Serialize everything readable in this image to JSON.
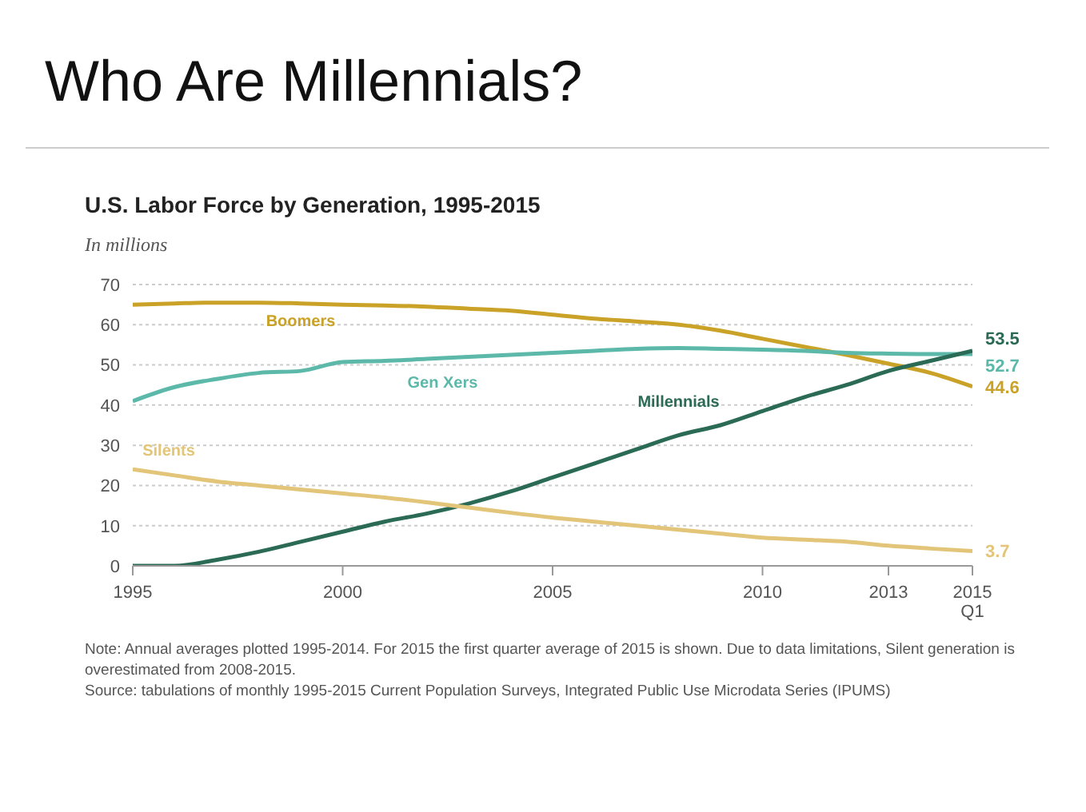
{
  "chart_data": {
    "type": "line",
    "title": "Who Are Millennials?",
    "subtitle": "U.S. Labor Force by Generation, 1995-2015",
    "ylabel": "In millions",
    "x": [
      1995,
      1996,
      1997,
      1998,
      1999,
      2000,
      2001,
      2002,
      2003,
      2004,
      2005,
      2006,
      2007,
      2008,
      2009,
      2010,
      2011,
      2012,
      2013,
      2014,
      2015
    ],
    "series": [
      {
        "name": "Boomers",
        "color": "#c9a227",
        "values": [
          65,
          65.3,
          65.5,
          65.5,
          65.3,
          65,
          64.8,
          64.5,
          64,
          63.5,
          62.5,
          61.5,
          60.8,
          60,
          58.5,
          56.5,
          54.5,
          52.5,
          50.3,
          48,
          44.6
        ],
        "value_labels": [
          null,
          null,
          null,
          null,
          null,
          null,
          null,
          null,
          null,
          null,
          null,
          null,
          null,
          null,
          null,
          null,
          null,
          null,
          null,
          null,
          "44.6"
        ]
      },
      {
        "name": "Gen Xers",
        "color": "#5cb8a8",
        "values": [
          41,
          44.5,
          46.5,
          48,
          48.5,
          50.7,
          51,
          51.5,
          52,
          52.5,
          53,
          53.5,
          54,
          54.2,
          54,
          53.8,
          53.5,
          53,
          52.8,
          52.7,
          52.7
        ],
        "value_labels": [
          null,
          null,
          null,
          null,
          null,
          null,
          null,
          null,
          null,
          null,
          null,
          null,
          null,
          null,
          null,
          null,
          null,
          null,
          null,
          null,
          "52.7"
        ]
      },
      {
        "name": "Millennials",
        "color": "#2b6b55",
        "values": [
          0,
          0,
          1.5,
          3.5,
          6,
          8.5,
          11,
          13,
          15.5,
          18.5,
          22,
          25.5,
          29,
          32.5,
          35,
          38.5,
          42,
          45,
          48.5,
          51,
          53.5
        ],
        "value_labels": [
          null,
          null,
          null,
          null,
          null,
          null,
          null,
          null,
          null,
          null,
          null,
          null,
          null,
          null,
          null,
          null,
          null,
          null,
          null,
          null,
          "53.5"
        ]
      },
      {
        "name": "Silents",
        "color": "#e3c57a",
        "values": [
          24,
          22.5,
          21,
          20,
          19,
          18,
          17,
          15.8,
          14.5,
          13.2,
          12,
          11,
          10,
          9,
          8,
          7,
          6.5,
          6,
          5,
          4.3,
          3.7
        ],
        "value_labels": [
          null,
          null,
          null,
          null,
          null,
          null,
          null,
          null,
          null,
          null,
          null,
          null,
          null,
          null,
          null,
          null,
          null,
          null,
          null,
          null,
          "3.7"
        ]
      }
    ],
    "xlim": [
      1995,
      2015
    ],
    "xticks": [
      1995,
      2000,
      2005,
      2010,
      2013,
      {
        "value": 2015,
        "label": "2015\nQ1"
      }
    ],
    "ylim": [
      0,
      70
    ],
    "yticks": [
      0,
      10,
      20,
      30,
      40,
      50,
      60,
      70
    ],
    "grid": "y",
    "legend": false,
    "annotations": [
      "Note: Annual averages plotted 1995-2014. For 2015 the first quarter average of 2015 is shown. Due to data limitations, Silent generation is overestimated from 2008-2015.",
      "Source: tabulations of monthly 1995-2015 Current Population Surveys, Integrated Public Use Microdata Series (IPUMS)"
    ]
  }
}
